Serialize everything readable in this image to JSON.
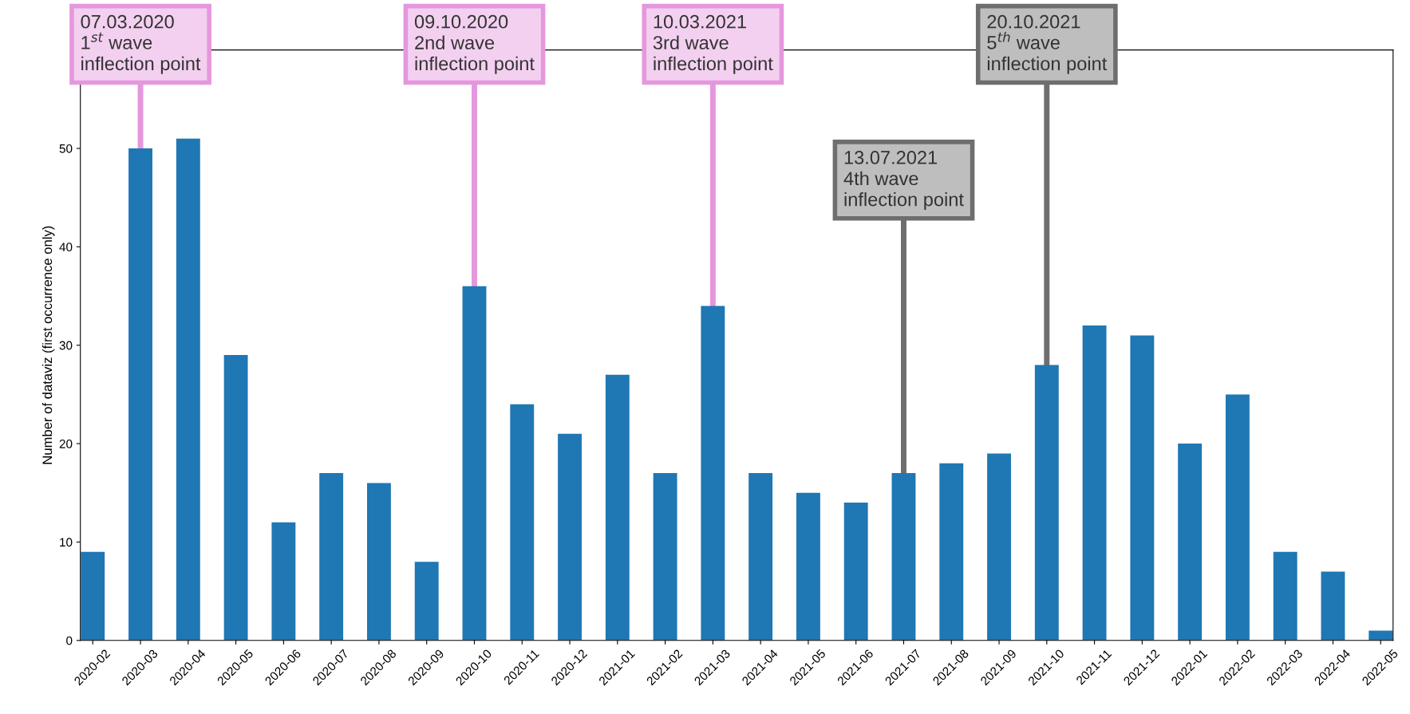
{
  "chart_data": {
    "type": "bar",
    "ylabel": "Number of dataviz (first occurrence only)",
    "categories": [
      "2020-02",
      "2020-03",
      "2020-04",
      "2020-05",
      "2020-06",
      "2020-07",
      "2020-08",
      "2020-09",
      "2020-10",
      "2020-11",
      "2020-12",
      "2021-01",
      "2021-02",
      "2021-03",
      "2021-04",
      "2021-05",
      "2021-06",
      "2021-07",
      "2021-08",
      "2021-09",
      "2021-10",
      "2021-11",
      "2021-12",
      "2022-01",
      "2022-02",
      "2022-03",
      "2022-04",
      "2022-05"
    ],
    "values": [
      9,
      50,
      51,
      29,
      12,
      17,
      16,
      8,
      36,
      24,
      21,
      27,
      17,
      34,
      17,
      15,
      14,
      17,
      18,
      19,
      28,
      32,
      31,
      20,
      25,
      9,
      7,
      1
    ],
    "color": "#1f77b4",
    "ylim": [
      0,
      60
    ],
    "yticks": [
      0,
      10,
      20,
      30,
      40,
      50
    ],
    "ref_lines": [
      {
        "axis": "x",
        "value": "2020-03",
        "label": "07.03.2020\n1$^{st}$ wave\ninflection point",
        "color": "#e597dd"
      },
      {
        "axis": "x",
        "value": "2020-10",
        "label": "09.10.2020\n2nd wave\ninflection point",
        "color": "#e597dd"
      },
      {
        "axis": "x",
        "value": "2021-03",
        "label": "10.03.2021\n3rd wave\ninflection point",
        "color": "#e597dd"
      },
      {
        "axis": "x",
        "value": "2021-07",
        "label": "13.07.2021\n4th wave\ninflection point",
        "color": "#6e6e6e"
      },
      {
        "axis": "x",
        "value": "2021-10",
        "label": "20.10.2021\n5$^{th}$ wave\ninflection point",
        "color": "#6e6e6e"
      }
    ]
  }
}
